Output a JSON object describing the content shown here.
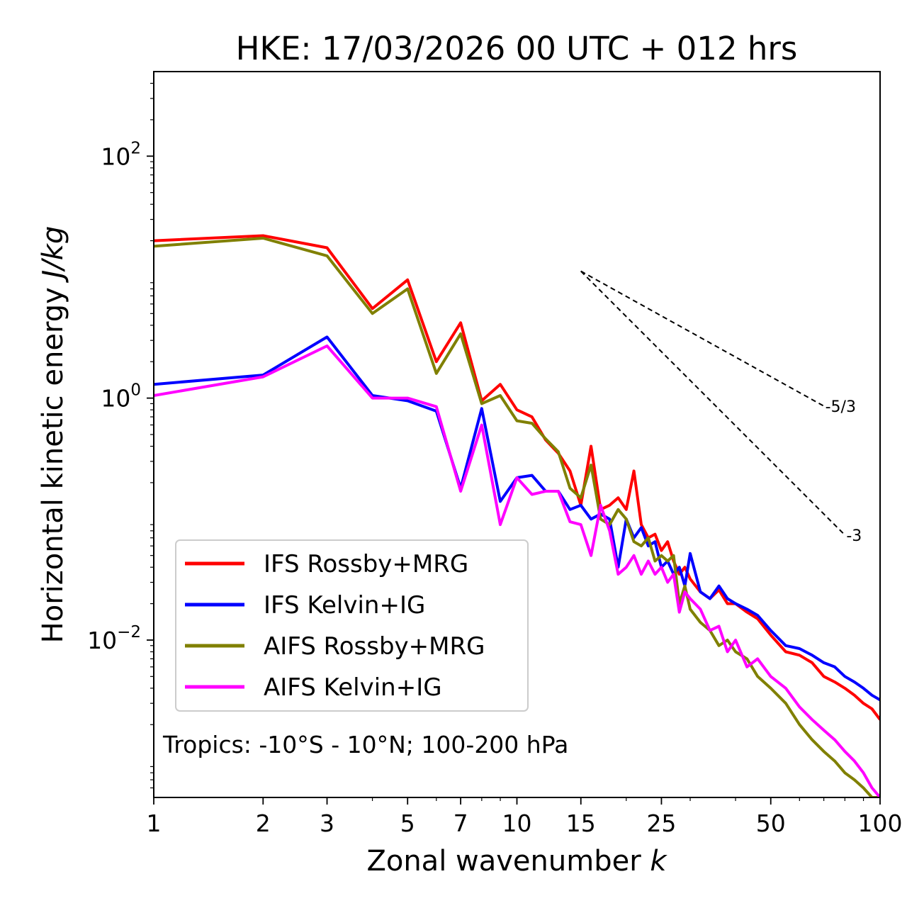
{
  "chart_data": {
    "type": "line",
    "title": "HKE: 17/03/2026 00 UTC + 012 hrs",
    "xlabel_text": "Zonal wavenumber ",
    "xlabel_var": "k",
    "ylabel_text": "Horizontal kinetic energy ",
    "ylabel_unit": "J/kg",
    "xscale": "log",
    "yscale": "log",
    "xlim": [
      1,
      100
    ],
    "ylim": [
      0.0005,
      500
    ],
    "x_ticks": [
      1,
      2,
      3,
      5,
      7,
      10,
      15,
      25,
      50,
      100
    ],
    "x_tick_labels": [
      "1",
      "2",
      "3",
      "5",
      "7",
      "10",
      "15",
      "25",
      "50",
      "100"
    ],
    "y_ticks": [
      100,
      1,
      0.01
    ],
    "y_tick_labels": [
      {
        "base": "10",
        "exp": "2"
      },
      {
        "base": "10",
        "exp": "0"
      },
      {
        "base": "10",
        "exp": "−2"
      }
    ],
    "annotation": "Tropics: -10°S - 10°N; 100-200 hPa",
    "legend_position": "lower-left",
    "reference_slopes": [
      {
        "label": "-5/3",
        "slope": -1.6667,
        "x_start": 15,
        "x_end": 70,
        "y_start": 11.2
      },
      {
        "label": "-3",
        "slope": -3,
        "x_start": 15,
        "x_end": 80,
        "y_start": 11.2
      }
    ],
    "series": [
      {
        "name": "IFS Rossby+MRG",
        "color": "#ff0000",
        "x": [
          1,
          2,
          3,
          4,
          5,
          6,
          7,
          8,
          9,
          10,
          11,
          12,
          13,
          14,
          15,
          16,
          17,
          18,
          19,
          20,
          21,
          22,
          23,
          24,
          25,
          26,
          27,
          28,
          29,
          30,
          32,
          34,
          36,
          38,
          40,
          43,
          46,
          50,
          55,
          60,
          65,
          70,
          75,
          80,
          85,
          90,
          95,
          100
        ],
        "values": [
          20.0,
          22.0,
          17.5,
          5.5,
          9.5,
          2.0,
          4.2,
          0.95,
          1.3,
          0.8,
          0.7,
          0.45,
          0.35,
          0.25,
          0.13,
          0.4,
          0.12,
          0.13,
          0.15,
          0.12,
          0.25,
          0.09,
          0.07,
          0.075,
          0.055,
          0.065,
          0.045,
          0.035,
          0.04,
          0.032,
          0.025,
          0.022,
          0.026,
          0.02,
          0.02,
          0.017,
          0.015,
          0.011,
          0.008,
          0.0075,
          0.0065,
          0.005,
          0.0045,
          0.004,
          0.0035,
          0.003,
          0.0027,
          0.0022
        ]
      },
      {
        "name": "IFS Kelvin+IG",
        "color": "#0000ff",
        "x": [
          1,
          2,
          3,
          4,
          5,
          6,
          7,
          8,
          9,
          10,
          11,
          12,
          13,
          14,
          15,
          16,
          17,
          18,
          19,
          20,
          21,
          22,
          23,
          24,
          25,
          26,
          27,
          28,
          29,
          30,
          32,
          34,
          36,
          38,
          40,
          43,
          46,
          50,
          55,
          60,
          65,
          70,
          75,
          80,
          85,
          90,
          95,
          100
        ],
        "values": [
          1.3,
          1.55,
          3.2,
          1.05,
          0.95,
          0.78,
          0.18,
          0.82,
          0.14,
          0.22,
          0.23,
          0.17,
          0.17,
          0.12,
          0.13,
          0.1,
          0.11,
          0.1,
          0.04,
          0.1,
          0.07,
          0.085,
          0.06,
          0.065,
          0.04,
          0.045,
          0.035,
          0.04,
          0.028,
          0.052,
          0.025,
          0.022,
          0.028,
          0.022,
          0.02,
          0.018,
          0.016,
          0.012,
          0.009,
          0.0085,
          0.0075,
          0.0065,
          0.006,
          0.005,
          0.0045,
          0.004,
          0.0035,
          0.0032
        ]
      },
      {
        "name": "AIFS Rossby+MRG",
        "color": "#808000",
        "x": [
          1,
          2,
          3,
          4,
          5,
          6,
          7,
          8,
          9,
          10,
          11,
          12,
          13,
          14,
          15,
          16,
          17,
          18,
          19,
          20,
          21,
          22,
          23,
          24,
          25,
          26,
          27,
          28,
          29,
          30,
          32,
          34,
          36,
          38,
          40,
          43,
          46,
          50,
          55,
          60,
          65,
          70,
          75,
          80,
          85,
          90,
          95,
          100
        ],
        "values": [
          18.0,
          21.0,
          15.0,
          5.0,
          8.0,
          1.6,
          3.4,
          0.9,
          1.05,
          0.65,
          0.62,
          0.46,
          0.36,
          0.18,
          0.15,
          0.28,
          0.1,
          0.09,
          0.12,
          0.1,
          0.065,
          0.06,
          0.07,
          0.045,
          0.05,
          0.045,
          0.05,
          0.02,
          0.028,
          0.018,
          0.014,
          0.012,
          0.009,
          0.01,
          0.008,
          0.007,
          0.005,
          0.004,
          0.003,
          0.002,
          0.0015,
          0.0012,
          0.001,
          0.0008,
          0.0007,
          0.0006,
          0.0005,
          0.0005
        ]
      },
      {
        "name": "AIFS Kelvin+IG",
        "color": "#ff00ff",
        "x": [
          1,
          2,
          3,
          4,
          5,
          6,
          7,
          8,
          9,
          10,
          11,
          12,
          13,
          14,
          15,
          16,
          17,
          18,
          19,
          20,
          21,
          22,
          23,
          24,
          25,
          26,
          27,
          28,
          29,
          30,
          32,
          34,
          36,
          38,
          40,
          43,
          46,
          50,
          55,
          60,
          65,
          70,
          75,
          80,
          85,
          90,
          95,
          100
        ],
        "values": [
          1.05,
          1.5,
          2.7,
          1.0,
          1.0,
          0.85,
          0.17,
          0.6,
          0.09,
          0.22,
          0.16,
          0.17,
          0.17,
          0.095,
          0.09,
          0.05,
          0.13,
          0.08,
          0.035,
          0.04,
          0.05,
          0.035,
          0.045,
          0.035,
          0.04,
          0.03,
          0.035,
          0.017,
          0.025,
          0.022,
          0.018,
          0.012,
          0.013,
          0.008,
          0.01,
          0.006,
          0.007,
          0.005,
          0.004,
          0.0028,
          0.0022,
          0.0018,
          0.0015,
          0.0012,
          0.001,
          0.0008,
          0.0006,
          0.0005
        ]
      }
    ]
  }
}
